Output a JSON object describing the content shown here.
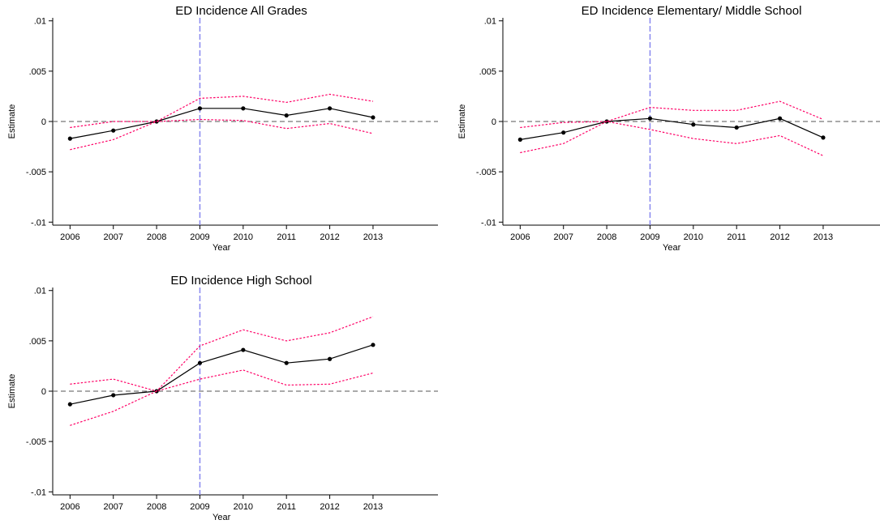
{
  "colors": {
    "estimate": "#000000",
    "ci": "#ff0066",
    "zero_line": "#555555",
    "event_line": "#8888ee",
    "axis": "#000000"
  },
  "chart_data": [
    {
      "type": "line",
      "title": "ED Incidence All Grades",
      "xlabel": "Year",
      "ylabel": "Estimate",
      "x": [
        2006,
        2007,
        2008,
        2009,
        2010,
        2011,
        2012,
        2013
      ],
      "xlim": [
        2005.6,
        2014.5
      ],
      "ylim": [
        -0.0103,
        0.0103
      ],
      "yticks": [
        -0.01,
        -0.005,
        0,
        0.005,
        0.01
      ],
      "ytick_labels": [
        "-.01",
        "-.005",
        "0",
        ".005",
        ".01"
      ],
      "reference_y": 0,
      "event_x": 2009,
      "series": [
        {
          "role": "estimate",
          "values": [
            -0.0017,
            -0.0009,
            0.0,
            0.0013,
            0.0013,
            0.0006,
            0.0013,
            0.0004
          ]
        },
        {
          "role": "upper_ci",
          "values": [
            -0.0006,
            0.0,
            0.0,
            0.0023,
            0.0025,
            0.0019,
            0.0027,
            0.002
          ]
        },
        {
          "role": "lower_ci",
          "values": [
            -0.0028,
            -0.0018,
            0.0,
            0.0002,
            0.0001,
            -0.0007,
            -0.0002,
            -0.0012
          ]
        }
      ]
    },
    {
      "type": "line",
      "title": "ED Incidence Elementary/ Middle School",
      "xlabel": "Year",
      "ylabel": "Estimate",
      "x": [
        2006,
        2007,
        2008,
        2009,
        2010,
        2011,
        2012,
        2013
      ],
      "xlim": [
        2005.6,
        2014.5
      ],
      "ylim": [
        -0.0103,
        0.0103
      ],
      "yticks": [
        -0.01,
        -0.005,
        0,
        0.005,
        0.01
      ],
      "ytick_labels": [
        "-.01",
        "-.005",
        "0",
        ".005",
        ".01"
      ],
      "reference_y": 0,
      "event_x": 2009,
      "series": [
        {
          "role": "estimate",
          "values": [
            -0.0018,
            -0.0011,
            0.0,
            0.0003,
            -0.0003,
            -0.0006,
            0.0003,
            -0.0016
          ]
        },
        {
          "role": "upper_ci",
          "values": [
            -0.0006,
            -0.0001,
            0.0,
            0.0014,
            0.0011,
            0.0011,
            0.002,
            0.0002
          ]
        },
        {
          "role": "lower_ci",
          "values": [
            -0.0031,
            -0.0022,
            0.0,
            -0.0008,
            -0.0017,
            -0.0022,
            -0.0014,
            -0.0034
          ]
        }
      ]
    },
    {
      "type": "line",
      "title": "ED Incidence High School",
      "xlabel": "Year",
      "ylabel": "Estimate",
      "x": [
        2006,
        2007,
        2008,
        2009,
        2010,
        2011,
        2012,
        2013
      ],
      "xlim": [
        2005.6,
        2014.5
      ],
      "ylim": [
        -0.0103,
        0.0103
      ],
      "yticks": [
        -0.01,
        -0.005,
        0,
        0.005,
        0.01
      ],
      "ytick_labels": [
        "-.01",
        "-.005",
        "0",
        ".005",
        ".01"
      ],
      "reference_y": 0,
      "event_x": 2009,
      "series": [
        {
          "role": "estimate",
          "values": [
            -0.0013,
            -0.0004,
            0.0,
            0.0028,
            0.0041,
            0.0028,
            0.0032,
            0.0046
          ]
        },
        {
          "role": "upper_ci",
          "values": [
            0.0007,
            0.0012,
            0.0,
            0.0045,
            0.0061,
            0.005,
            0.0058,
            0.0074
          ]
        },
        {
          "role": "lower_ci",
          "values": [
            -0.0034,
            -0.002,
            0.0,
            0.0012,
            0.0021,
            0.0006,
            0.0007,
            0.0018
          ]
        }
      ]
    }
  ]
}
